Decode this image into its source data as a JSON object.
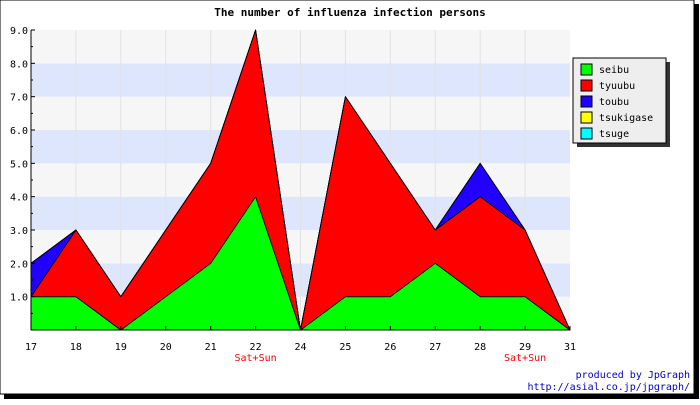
{
  "chart_data": {
    "type": "area",
    "stacked": true,
    "title": "The number of influenza infection persons",
    "x": [
      "17",
      "18",
      "19",
      "20",
      "21",
      "22",
      "24",
      "25",
      "26",
      "27",
      "28",
      "29",
      "31"
    ],
    "x_sublabels": [
      "",
      "",
      "",
      "",
      "",
      "Sat+Sun",
      "",
      "",
      "",
      "",
      "",
      "Sat+Sun",
      ""
    ],
    "yticks": [
      "1.0",
      "2.0",
      "3.0",
      "4.0",
      "5.0",
      "6.0",
      "7.0",
      "8.0",
      "9.0"
    ],
    "ylim": [
      0,
      9
    ],
    "grid": true,
    "legend_position": "top-right",
    "series": [
      {
        "name": "seibu",
        "color": "#00ff00",
        "values": [
          1,
          1,
          0,
          1,
          2,
          4,
          0,
          1,
          1,
          2,
          1,
          1,
          0
        ]
      },
      {
        "name": "tyuubu",
        "color": "#ff0000",
        "values": [
          0,
          2,
          1,
          2,
          3,
          5,
          0,
          6,
          4,
          1,
          3,
          2,
          0
        ]
      },
      {
        "name": "toubu",
        "color": "#2200ff",
        "values": [
          1,
          0,
          0,
          0,
          0,
          0,
          0,
          0,
          0,
          0,
          1,
          0,
          0
        ]
      },
      {
        "name": "tsukigase",
        "color": "#ffff00",
        "values": [
          0,
          0,
          0,
          0,
          0,
          0,
          0,
          0,
          0,
          0,
          0,
          0,
          0
        ]
      },
      {
        "name": "tsuge",
        "color": "#00ffff",
        "values": [
          0,
          0,
          0,
          0,
          0,
          0,
          0,
          0,
          0,
          0,
          0,
          0,
          0
        ]
      }
    ]
  },
  "credit": {
    "line1": "produced by JpGraph",
    "line2": "http://asial.co.jp/jpgraph/"
  }
}
